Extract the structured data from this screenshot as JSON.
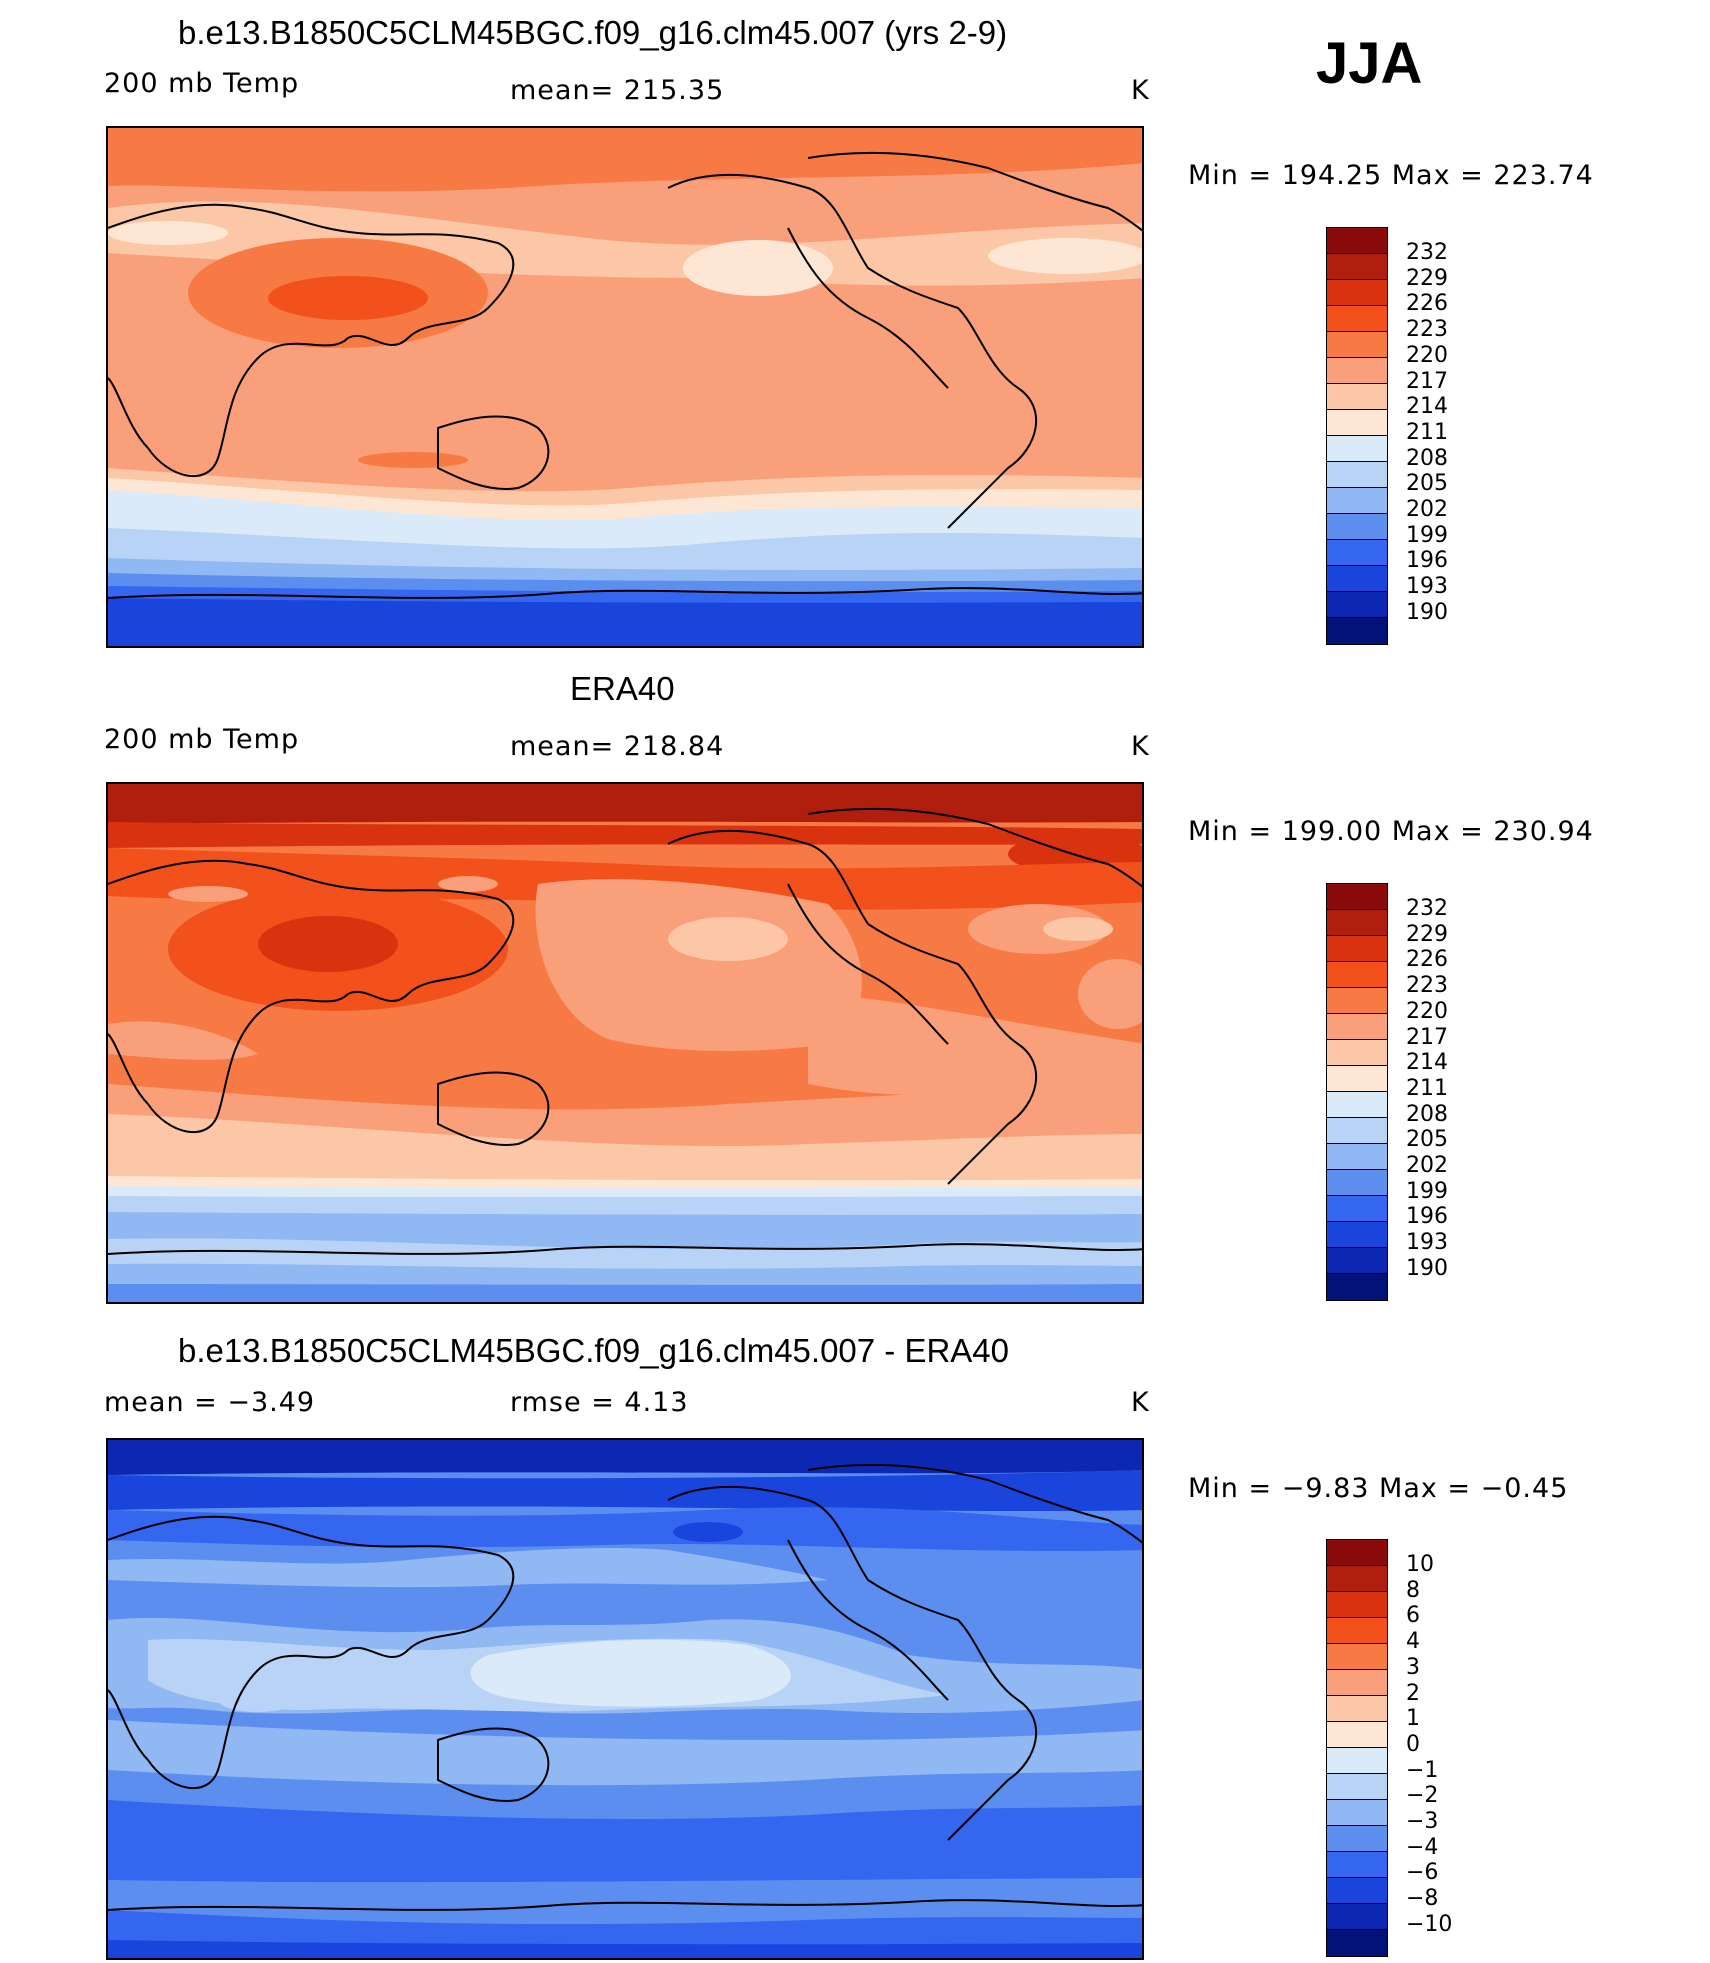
{
  "season": "JJA",
  "units": "K",
  "panels": [
    {
      "title": "b.e13.B1850C5CLM45BGC.f09_g16.clm45.007 (yrs 2-9)",
      "left_label": "200 mb Temp",
      "center_label": "mean=  215.35",
      "units": "K",
      "minmax": "Min  =  194.25  Max  =  223.74",
      "colorbar_labels": [
        "232",
        "229",
        "226",
        "223",
        "220",
        "217",
        "214",
        "211",
        "208",
        "205",
        "202",
        "199",
        "196",
        "193",
        "190"
      ]
    },
    {
      "title": "ERA40",
      "left_label": "200 mb Temp",
      "center_label": "mean=  218.84",
      "units": "K",
      "minmax": "Min  =  199.00  Max  =  230.94",
      "colorbar_labels": [
        "232",
        "229",
        "226",
        "223",
        "220",
        "217",
        "214",
        "211",
        "208",
        "205",
        "202",
        "199",
        "196",
        "193",
        "190"
      ]
    },
    {
      "title": "b.e13.B1850C5CLM45BGC.f09_g16.clm45.007 - ERA40",
      "left_label": "mean  =    −3.49",
      "center_label": "rmse  =     4.13",
      "units": "K",
      "minmax": "Min  =    −9.83  Max  =    −0.45",
      "colorbar_labels": [
        "10",
        "8",
        "6",
        "4",
        "3",
        "2",
        "1",
        "0",
        "−1",
        "−2",
        "−3",
        "−4",
        "−6",
        "−8",
        "−10"
      ]
    }
  ],
  "palette": [
    "#8b0a0a",
    "#b01f0e",
    "#d9320f",
    "#f2511c",
    "#f77a45",
    "#f9a07a",
    "#fbc7a6",
    "#fde7d4",
    "#dbeaf9",
    "#b8d3f6",
    "#90b8f2",
    "#5c8ef0",
    "#3466f0",
    "#1a45dc",
    "#0c28b3",
    "#031278"
  ]
}
